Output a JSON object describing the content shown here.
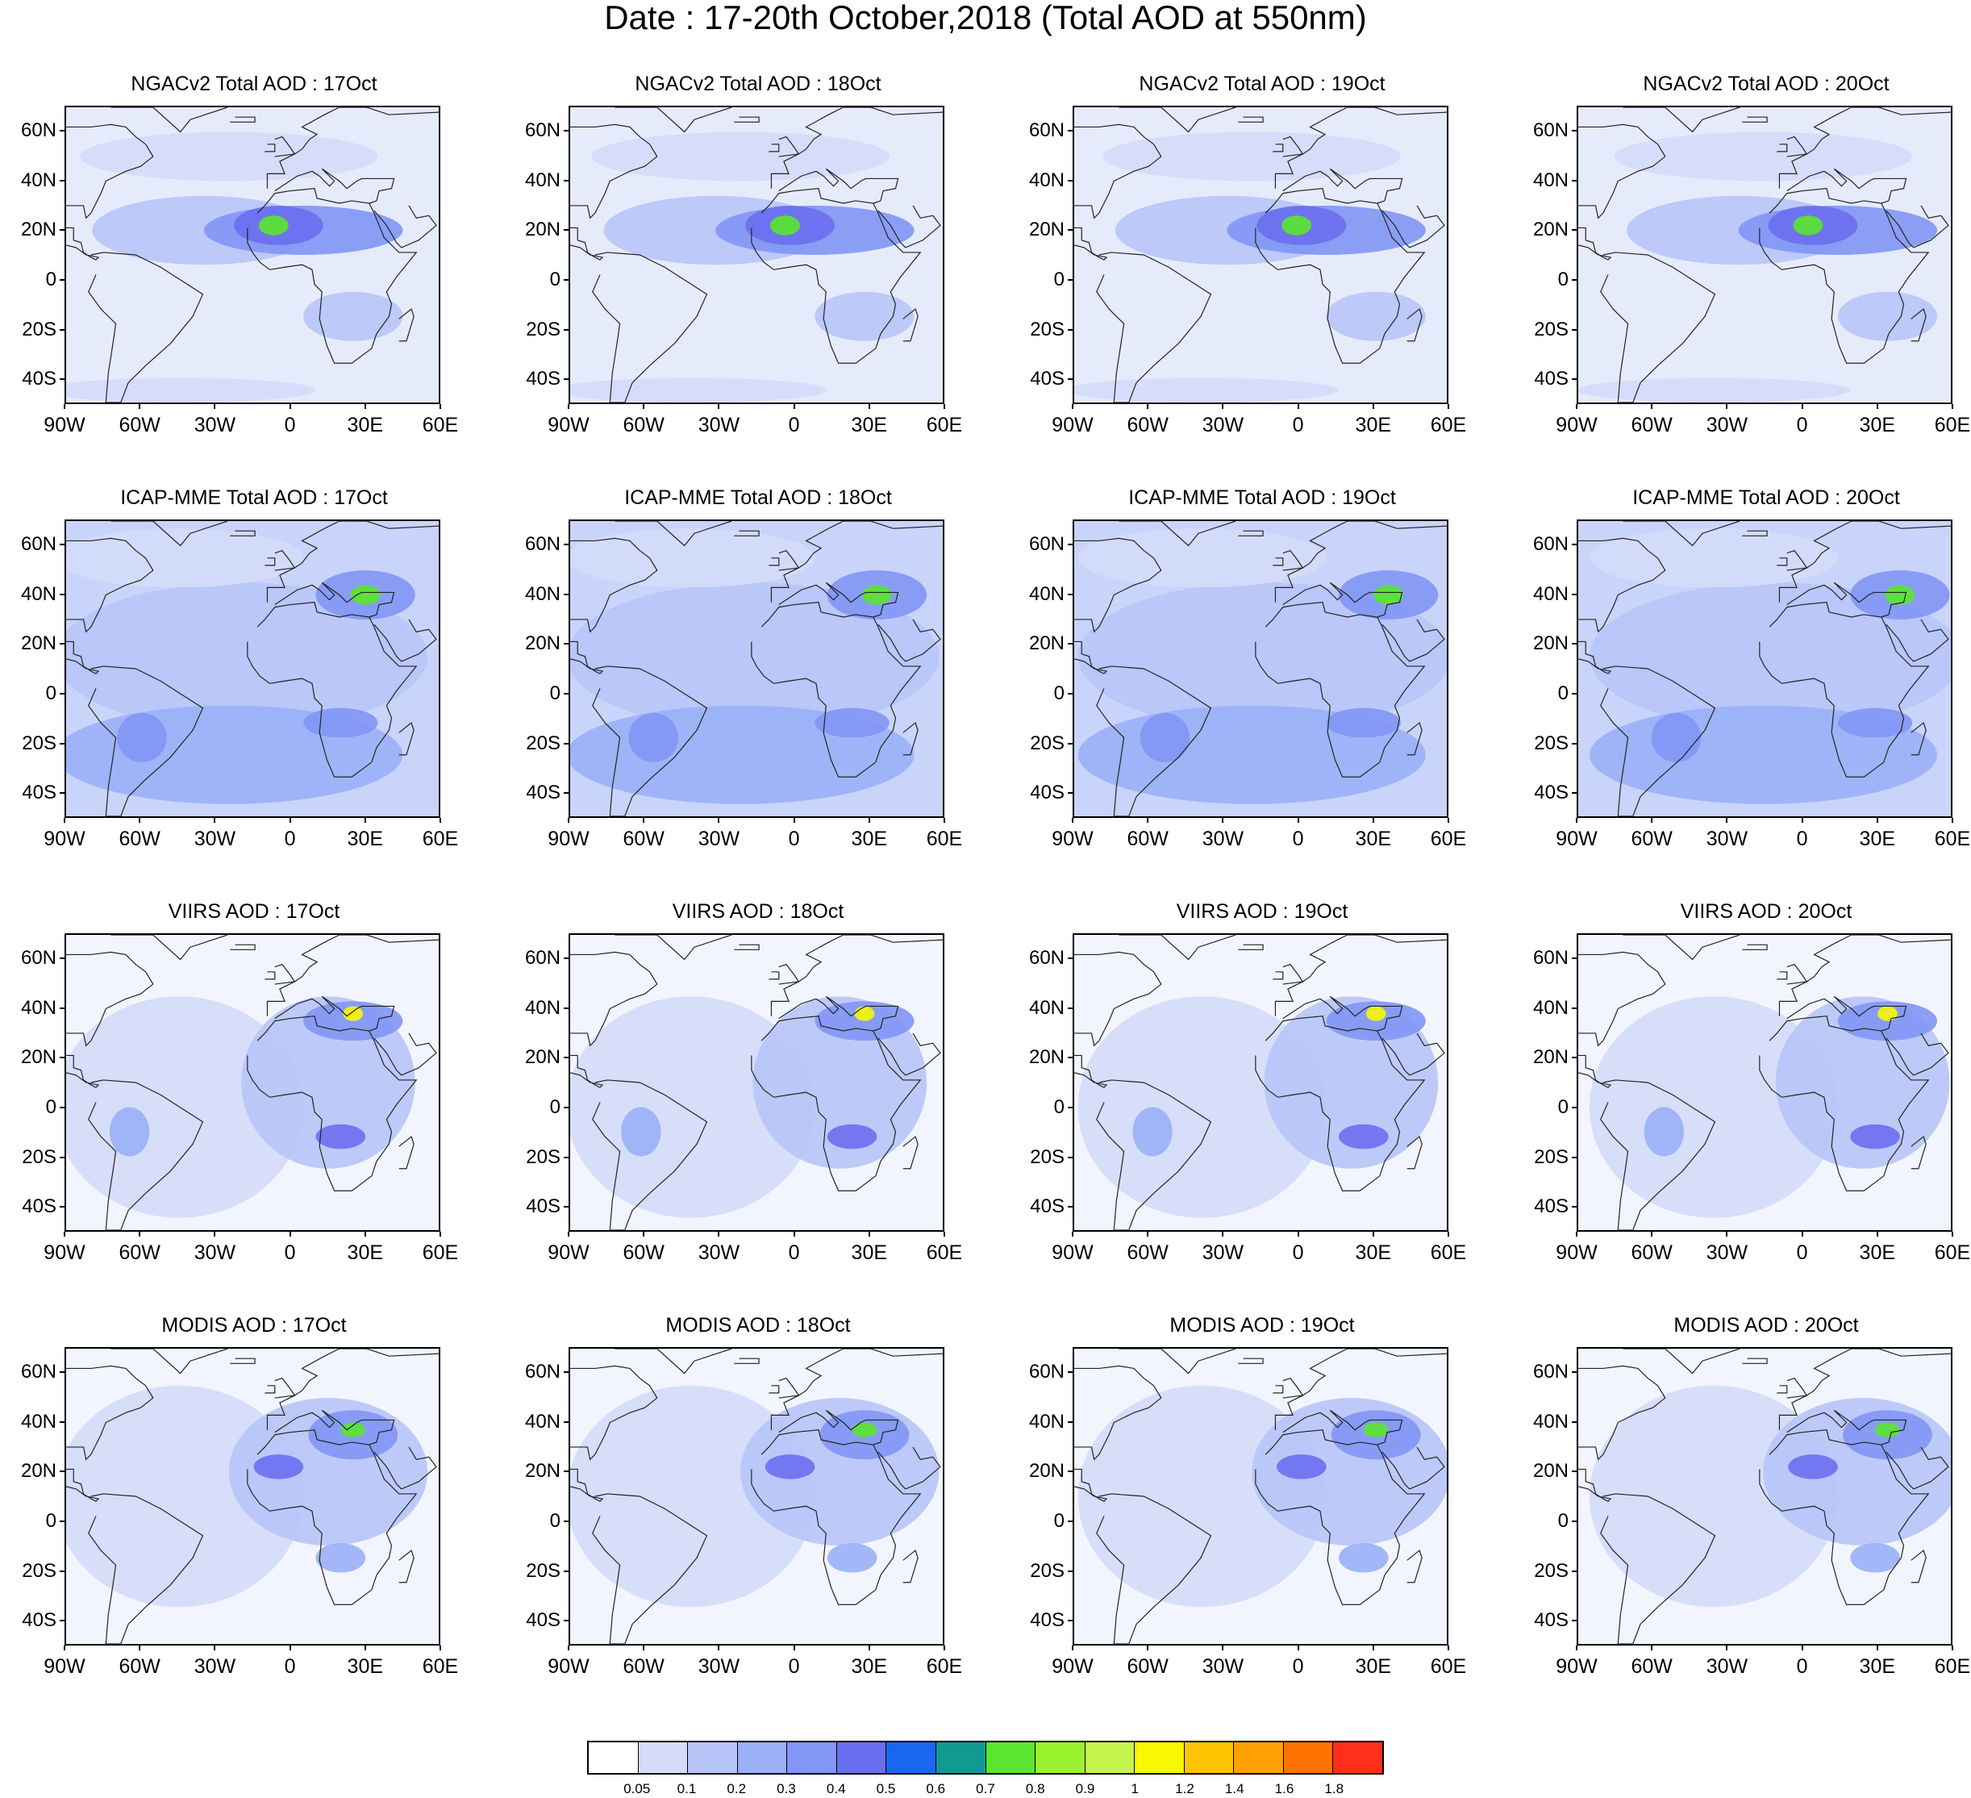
{
  "figure": {
    "title": "Date : 17-20th October,2018 (Total AOD at 550nm)"
  },
  "map_axes": {
    "lat_labels": [
      "60N",
      "40N",
      "20N",
      "0",
      "20S",
      "40S"
    ],
    "lat_values": [
      60,
      40,
      20,
      0,
      -20,
      -40
    ],
    "lon_labels": [
      "90W",
      "60W",
      "30W",
      "0",
      "30E",
      "60E"
    ],
    "lon_values": [
      -90,
      -60,
      -30,
      0,
      30,
      60
    ],
    "lat_range": [
      -50,
      70
    ],
    "lon_range": [
      -90,
      60
    ]
  },
  "panels": [
    {
      "title": "NGACv2 Total AOD : 17Oct"
    },
    {
      "title": "NGACv2 Total AOD : 18Oct"
    },
    {
      "title": "NGACv2 Total AOD : 19Oct"
    },
    {
      "title": "NGACv2 Total AOD : 20Oct"
    },
    {
      "title": "ICAP-MME Total AOD : 17Oct"
    },
    {
      "title": "ICAP-MME Total AOD : 18Oct"
    },
    {
      "title": "ICAP-MME Total AOD : 19Oct"
    },
    {
      "title": "ICAP-MME Total AOD : 20Oct"
    },
    {
      "title": "VIIRS AOD : 17Oct"
    },
    {
      "title": "VIIRS AOD : 18Oct"
    },
    {
      "title": "VIIRS AOD : 19Oct"
    },
    {
      "title": "VIIRS AOD : 20Oct"
    },
    {
      "title": "MODIS AOD : 17Oct"
    },
    {
      "title": "MODIS AOD : 18Oct"
    },
    {
      "title": "MODIS AOD : 19Oct"
    },
    {
      "title": "MODIS AOD : 20Oct"
    }
  ],
  "colorbar": {
    "colors": [
      "#ffffff",
      "#d4dcfa",
      "#b7c5f8",
      "#9ab0f7",
      "#8196f5",
      "#6a6ff0",
      "#1a66f0",
      "#109a92",
      "#5ae62e",
      "#9af22e",
      "#c6f44e",
      "#f8f800",
      "#fcc400",
      "#ffa000",
      "#ff7200",
      "#ff2f1a"
    ],
    "labels": [
      "0.05",
      "0.1",
      "0.2",
      "0.3",
      "0.4",
      "0.5",
      "0.6",
      "0.7",
      "0.8",
      "0.9",
      "1",
      "1.2",
      "1.4",
      "1.6",
      "1.8"
    ]
  }
}
